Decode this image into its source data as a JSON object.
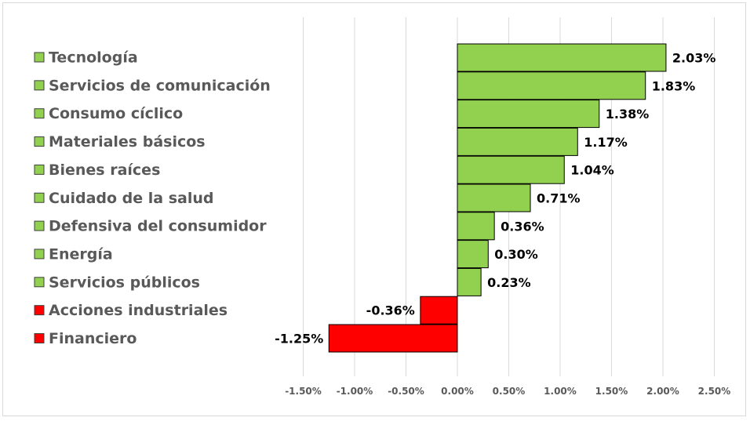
{
  "chart_data": {
    "type": "bar",
    "orientation": "horizontal",
    "categories": [
      "Tecnología",
      "Servicios de comunicación",
      "Consumo cíclico",
      "Materiales básicos",
      "Bienes raíces",
      "Cuidado de la salud",
      "Defensiva del consumidor",
      "Energía",
      "Servicios públicos",
      "Acciones industriales",
      "Financiero"
    ],
    "values": [
      2.03,
      1.83,
      1.38,
      1.17,
      1.04,
      0.71,
      0.36,
      0.3,
      0.23,
      -0.36,
      -1.25
    ],
    "data_labels": [
      "2.03%",
      "1.83%",
      "1.38%",
      "1.17%",
      "1.04%",
      "0.71%",
      "0.36%",
      "0.30%",
      "0.23%",
      "-0.36%",
      "-1.25%"
    ],
    "x_ticks": [
      -1.5,
      -1.0,
      -0.5,
      0.0,
      0.5,
      1.0,
      1.5,
      2.0,
      2.5
    ],
    "x_tick_labels": [
      "-1.50%",
      "-1.00%",
      "-0.50%",
      "0.00%",
      "0.50%",
      "1.00%",
      "1.50%",
      "2.00%",
      "2.50%"
    ],
    "xlim": [
      -1.5,
      2.5
    ],
    "grid": true,
    "legend_position": "left",
    "colors": {
      "positive": "#92d050",
      "negative": "#ff0000",
      "bar_border": "#000000",
      "grid": "#d9d9d9"
    },
    "title": "",
    "xlabel": "",
    "ylabel": ""
  }
}
